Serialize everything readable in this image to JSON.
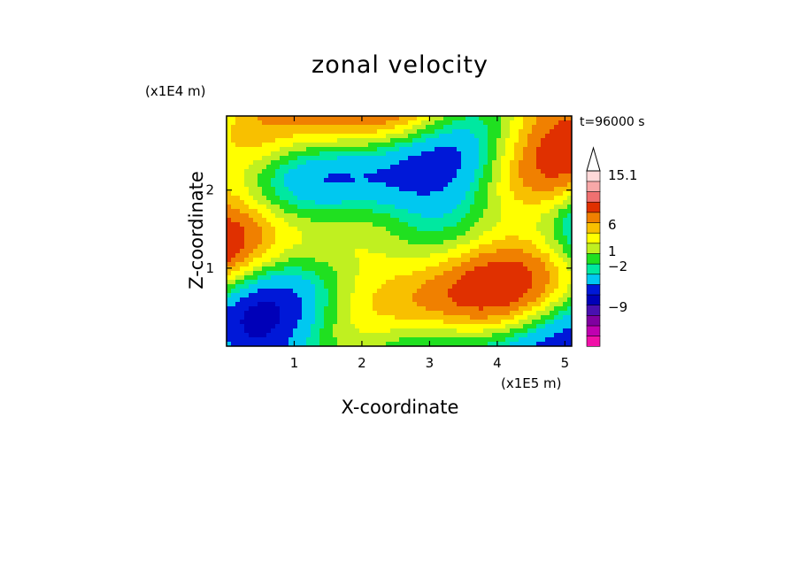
{
  "chart_data": {
    "type": "heatmap",
    "title": "zonal velocity",
    "xlabel": "X-coordinate",
    "ylabel": "Z-coordinate",
    "x_unit_label": "(x1E5 m)",
    "y_unit_label": "(x1E4 m)",
    "annotation": "t=96000 s",
    "xlim": [
      0,
      5.1
    ],
    "ylim": [
      0,
      2.95
    ],
    "x_ticks": [
      1,
      2,
      3,
      4,
      5
    ],
    "y_ticks": [
      1,
      2
    ],
    "colorbar": {
      "levels": [
        "-13.5",
        "-12",
        "-10.5",
        "-9",
        "-7.5",
        "-6",
        "-4.5",
        "-3",
        "-2",
        "-1",
        "0",
        "1",
        "2",
        "3",
        "6",
        "9",
        "12",
        "15.1"
      ],
      "labels": [
        {
          "text": "15.1",
          "value": 15.1
        },
        {
          "text": "6",
          "value": 6
        },
        {
          "text": "1",
          "value": 1
        },
        {
          "text": "−2",
          "value": -2
        },
        {
          "text": "−9",
          "value": -9
        }
      ],
      "colors": [
        "#f010a8",
        "#c000b0",
        "#8000a0",
        "#4810b0",
        "#0000b8",
        "#0018d8",
        "#00c8f0",
        "#00e8a0",
        "#20e020",
        "#c0f020",
        "#ffff00",
        "#f8c000",
        "#f08000",
        "#e03000",
        "#f07070",
        "#f8a8a8",
        "#ffd8d8"
      ],
      "extend_top": true
    },
    "field_pattern": "banded wave structures of alternating positive (yellow/orange/red) and negative (cyan/blue) zonal velocity"
  }
}
